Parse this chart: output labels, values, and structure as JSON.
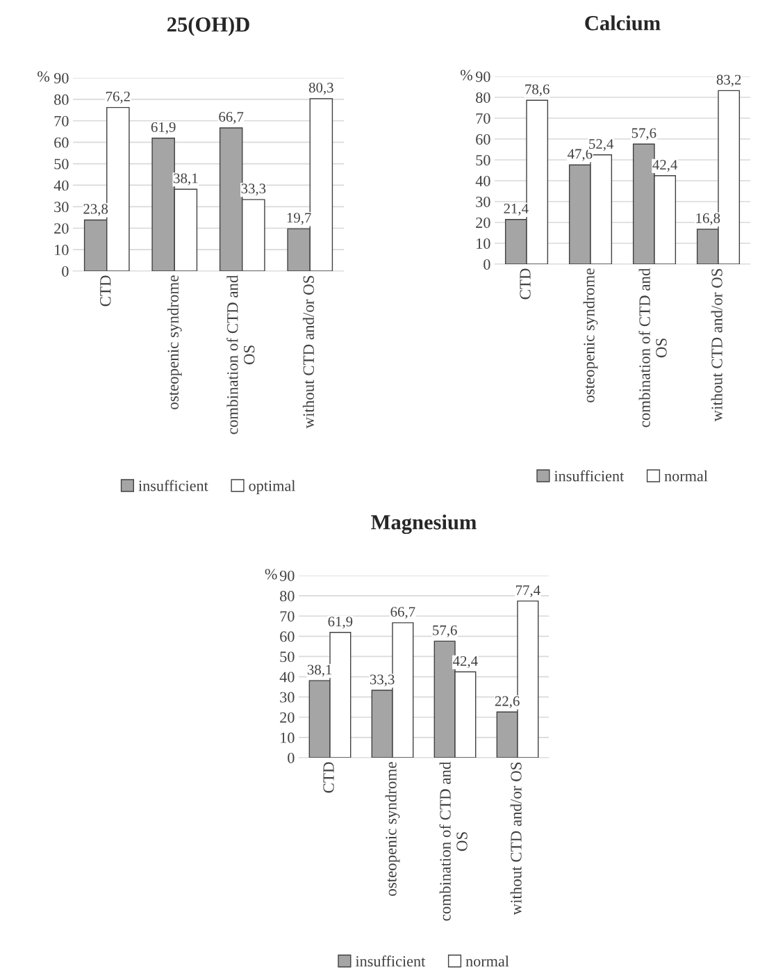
{
  "chart_data": [
    {
      "type": "bar",
      "title": "25(OH)D",
      "ylabel": "%",
      "categories": [
        "CTD",
        "osteopenic syndrome",
        "combination of CTD and\nOS",
        "without CTD and/or OS"
      ],
      "ylim": [
        0,
        90
      ],
      "yticks": [
        0,
        10,
        20,
        30,
        40,
        50,
        60,
        70,
        80,
        90
      ],
      "grid": "y",
      "legend": "bottom",
      "series": [
        {
          "name": "insufficient",
          "color": "#a5a5a5",
          "values": [
            23.8,
            61.9,
            66.7,
            19.7
          ],
          "value_labels": [
            "23,8",
            "61,9",
            "66,7",
            "19,7"
          ]
        },
        {
          "name": "optimal",
          "color": "#ffffff",
          "values": [
            76.2,
            38.1,
            33.3,
            80.3
          ],
          "value_labels": [
            "76,2",
            "38,1",
            "33,3",
            "80,3"
          ]
        }
      ]
    },
    {
      "type": "bar",
      "title": "Calcium",
      "ylabel": "%",
      "categories": [
        "CTD",
        "osteopenic syndrome",
        "combination of CTD and\nOS",
        "without CTD and/or OS"
      ],
      "ylim": [
        0,
        90
      ],
      "yticks": [
        0,
        10,
        20,
        30,
        40,
        50,
        60,
        70,
        80,
        90
      ],
      "grid": "y",
      "legend": "bottom",
      "series": [
        {
          "name": "insufficient",
          "color": "#a5a5a5",
          "values": [
            21.4,
            47.6,
            57.6,
            16.8
          ],
          "value_labels": [
            "21,4",
            "47,6",
            "57,6",
            "16,8"
          ]
        },
        {
          "name": "normal",
          "color": "#ffffff",
          "values": [
            78.6,
            52.4,
            42.4,
            83.2
          ],
          "value_labels": [
            "78,6",
            "52,4",
            "42,4",
            "83,2"
          ]
        }
      ]
    },
    {
      "type": "bar",
      "title": "Magnesium",
      "ylabel": "%",
      "categories": [
        "CTD",
        "osteopenic syndrome",
        "combination of CTD and\nOS",
        "without CTD and/or OS"
      ],
      "ylim": [
        0,
        90
      ],
      "yticks": [
        0,
        10,
        20,
        30,
        40,
        50,
        60,
        70,
        80,
        90
      ],
      "grid": "y",
      "legend": "bottom",
      "series": [
        {
          "name": "insufficient",
          "color": "#a5a5a5",
          "values": [
            38.1,
            33.3,
            57.6,
            22.6
          ],
          "value_labels": [
            "38,1",
            "33,3",
            "57,6",
            "22,6"
          ]
        },
        {
          "name": "normal",
          "color": "#ffffff",
          "values": [
            61.9,
            66.7,
            42.4,
            77.4
          ],
          "value_labels": [
            "61,9",
            "66,7",
            "42,4",
            "77,4"
          ]
        }
      ]
    }
  ]
}
